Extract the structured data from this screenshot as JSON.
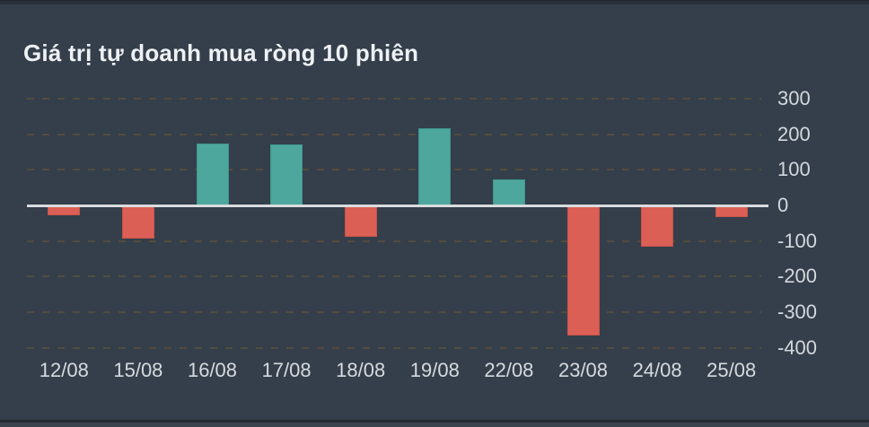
{
  "chart_data": {
    "type": "bar",
    "title": "Giá trị tự doanh mua ròng 10 phiên",
    "categories": [
      "12/08",
      "15/08",
      "16/08",
      "17/08",
      "18/08",
      "19/08",
      "22/08",
      "23/08",
      "24/08",
      "25/08"
    ],
    "values": [
      -26,
      -91,
      174,
      172,
      -86,
      218,
      73,
      -364,
      -114,
      -30
    ],
    "y_ticks": [
      300,
      200,
      100,
      0,
      -100,
      -200,
      -300,
      -400
    ],
    "ylim": [
      -430,
      320
    ],
    "xlabel": "",
    "ylabel": "",
    "legend": "none",
    "grid": "dashed-horizontal",
    "y_axis_side": "right",
    "positive_color": "#4da79d",
    "positive_border": "#3e968c",
    "negative_color": "#dc5f55",
    "negative_border": "#c85349",
    "zero_line_color": "#d9dcdf",
    "gridline_color": "#544c3c",
    "axis_label_color": "#d3d8dd",
    "title_color": "#eef1f4",
    "background_color": "#343f4b"
  }
}
